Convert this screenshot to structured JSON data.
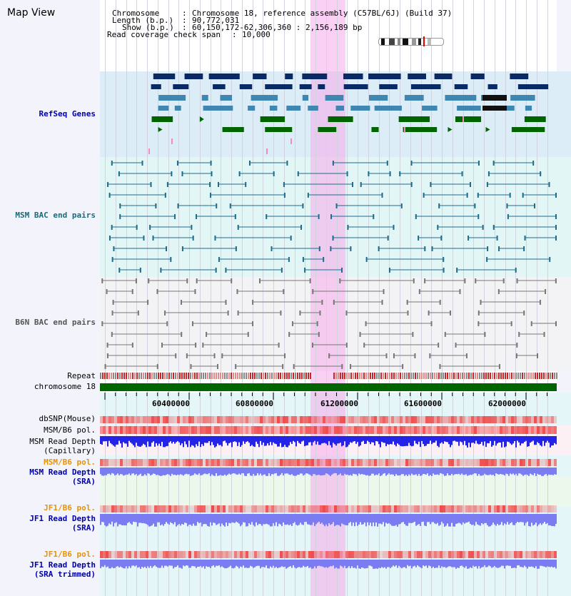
{
  "title": "Map View",
  "info": {
    "chromosome_label": "Chromosome",
    "chromosome_value": "Chromosome 18, reference assembly (C57BL/6J) (Build 37)",
    "length_label": "Length (b.p.)",
    "length_value": "90,772,031",
    "show_label": "Show (b.p.)",
    "show_value": "60,150,172-62,306,360 : 2,156,189 bp",
    "coverage_label": "Read coverage check span",
    "coverage_value": "10,000"
  },
  "tracks": {
    "refseq": "RefSeq Genes",
    "msm_bac": "MSM BAC end pairs",
    "b6n_bac": "B6N BAC end pairs",
    "repeat": "Repeat",
    "chromosome": "chromosome 18",
    "dbsnp": "dbSNP(Mouse)",
    "msm_b6_pol_1": "MSM/B6 pol.",
    "msm_depth_cap_1": "MSM Read Depth",
    "msm_depth_cap_2": "(Capillary)",
    "msm_b6_pol_2": "MSM/B6 pol.",
    "msm_depth_sra_1": "MSM Read Depth",
    "msm_depth_sra_2": "(SRA)",
    "jf1_b6_pol_1": "JF1/B6 pol.",
    "jf1_depth_sra_1": "JF1 Read Depth",
    "jf1_depth_sra_2": "(SRA)",
    "jf1_b6_pol_2": "JF1/B6 pol.",
    "jf1_depth_trim_1": "JF1 Read Depth",
    "jf1_depth_trim_2": "(SRA trimmed)"
  },
  "axis": {
    "ticks": [
      "60400000",
      "60800000",
      "61200000",
      "61600000",
      "62000000"
    ]
  },
  "colors": {
    "refseq_bg": "#dcedf7",
    "msm_bac_bg": "#e3f6f6",
    "b6n_bac_bg": "#f3f3f5",
    "highlight": "#f7ccf2",
    "gene_dark": "#0a2a66",
    "gene_mid": "#3f86b0",
    "gene_green": "#006400",
    "msm_line": "#1e6b8c",
    "b6n_line": "#777777",
    "depth_blue": "#2424e6",
    "depth_light": "#7b7bf2",
    "pol_red": "#ef4b4b",
    "label_blue": "#0000aa",
    "label_teal": "#1a6b7a",
    "label_orange": "#e69500"
  }
}
